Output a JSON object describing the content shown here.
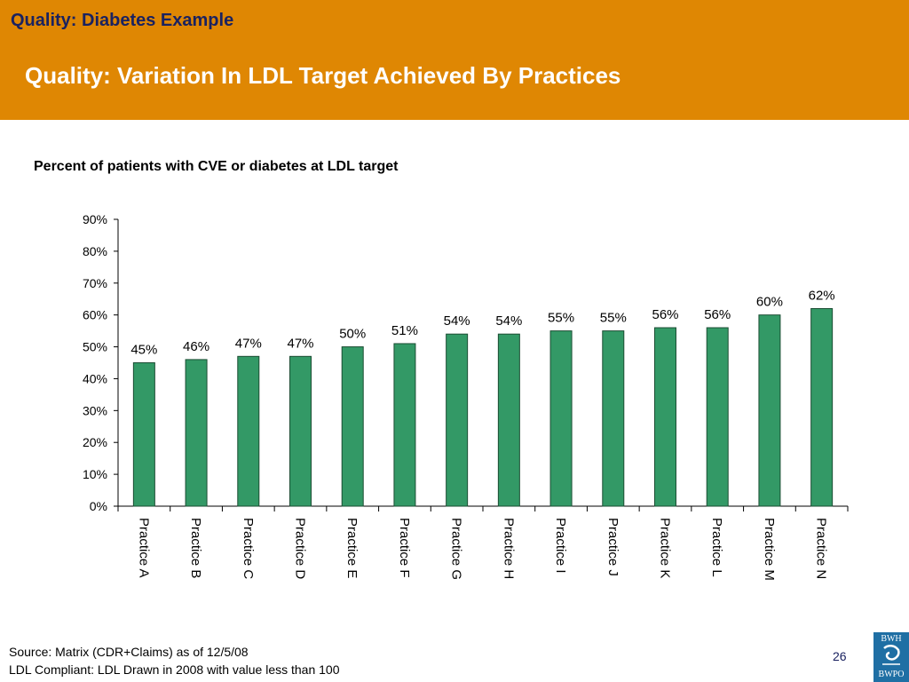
{
  "header": {
    "section_title": "Quality: Diabetes Example",
    "slide_title": "Quality: Variation In LDL Target Achieved By Practices"
  },
  "chart_data": {
    "type": "bar",
    "title": "Percent of patients with CVE or diabetes at LDL target",
    "categories": [
      "Practice A",
      "Practice B",
      "Practice C",
      "Practice D",
      "Practice E",
      "Practice F",
      "Practice G",
      "Practice H",
      "Practice I",
      "Practice J",
      "Practice K",
      "Practice L",
      "Practice M",
      "Practice N"
    ],
    "values": [
      45,
      46,
      47,
      47,
      50,
      51,
      54,
      54,
      55,
      55,
      56,
      56,
      60,
      62
    ],
    "value_labels": [
      "45%",
      "46%",
      "47%",
      "47%",
      "50%",
      "51%",
      "54%",
      "54%",
      "55%",
      "55%",
      "56%",
      "56%",
      "60%",
      "62%"
    ],
    "ylim": [
      0,
      90
    ],
    "y_ticks": [
      "0%",
      "10%",
      "20%",
      "30%",
      "40%",
      "50%",
      "60%",
      "70%",
      "80%",
      "90%"
    ],
    "bar_color": "#339966",
    "grid": false,
    "legend": "none"
  },
  "footer": {
    "line1": "Source: Matrix (CDR+Claims) as of 12/5/08",
    "line2": "LDL Compliant: LDL Drawn in 2008 with value less than 100",
    "page_number": "26"
  },
  "logo": {
    "top_text": "BWH",
    "bottom_text": "BWPO",
    "color": "#1f6fa4"
  },
  "colors": {
    "header_bg": "#df8703",
    "section_title": "#1a2260",
    "slide_title": "#ffffff"
  }
}
